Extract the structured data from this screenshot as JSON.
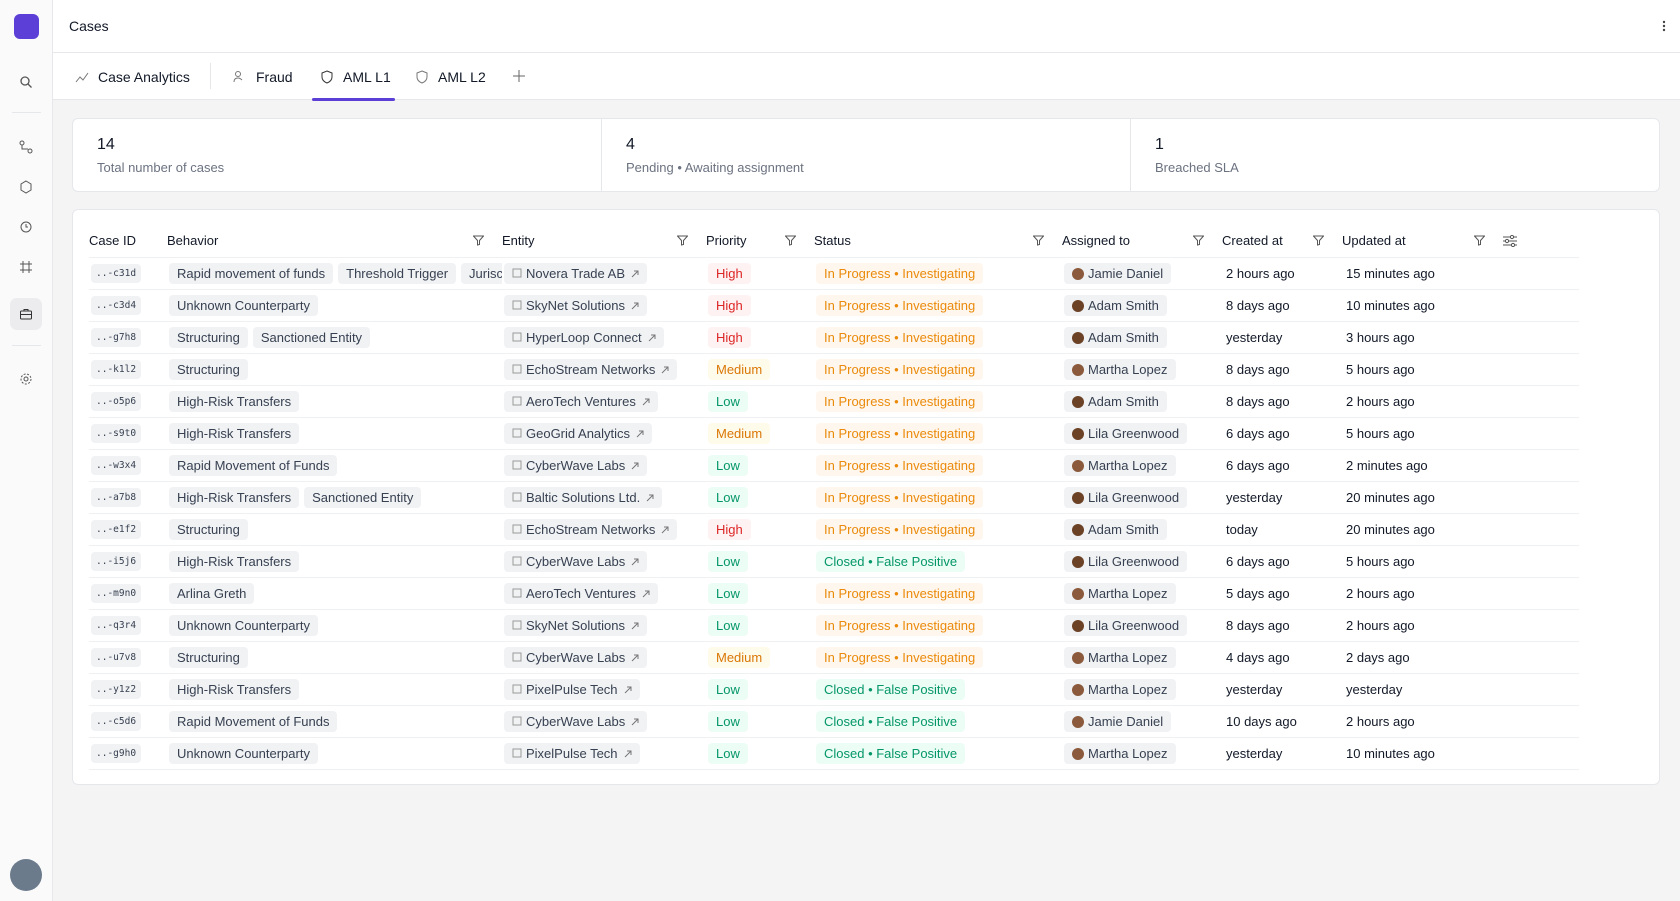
{
  "header": {
    "title": "Cases"
  },
  "tabs": [
    "Case Analytics",
    "Fraud",
    "AML L1",
    "AML L2"
  ],
  "stats": [
    {
      "value": "14",
      "label": "Total number of cases"
    },
    {
      "value": "4",
      "label": "Pending • Awaiting assignment"
    },
    {
      "value": "1",
      "label": "Breached SLA"
    }
  ],
  "table": {
    "columns": [
      "Case ID",
      "Behavior",
      "Entity",
      "Priority",
      "Status",
      "Assigned to",
      "Created at",
      "Updated at"
    ],
    "rows": [
      {
        "id": "..-c31d",
        "behaviors": [
          "Rapid movement of funds",
          "Threshold Trigger",
          "Jurisc"
        ],
        "entity": "Novera Trade AB",
        "priority": "High",
        "status": "In Progress • Investigating",
        "assigned": "Jamie Daniel",
        "created": "2 hours ago",
        "updated": "15 minutes ago"
      },
      {
        "id": "..-c3d4",
        "behaviors": [
          "Unknown Counterparty"
        ],
        "entity": "SkyNet Solutions",
        "priority": "High",
        "status": "In Progress • Investigating",
        "assigned": "Adam Smith",
        "created": "8 days ago",
        "updated": "10 minutes ago"
      },
      {
        "id": "..-g7h8",
        "behaviors": [
          "Structuring",
          "Sanctioned Entity"
        ],
        "entity": "HyperLoop Connect",
        "priority": "High",
        "status": "In Progress • Investigating",
        "assigned": "Adam Smith",
        "created": "yesterday",
        "updated": "3 hours ago"
      },
      {
        "id": "..-k1l2",
        "behaviors": [
          "Structuring"
        ],
        "entity": "EchoStream Networks",
        "priority": "Medium",
        "status": "In Progress • Investigating",
        "assigned": "Martha Lopez",
        "created": "8 days ago",
        "updated": "5 hours ago"
      },
      {
        "id": "..-o5p6",
        "behaviors": [
          "High-Risk Transfers"
        ],
        "entity": "AeroTech Ventures",
        "priority": "Low",
        "status": "In Progress • Investigating",
        "assigned": "Adam Smith",
        "created": "8 days ago",
        "updated": "2 hours ago"
      },
      {
        "id": "..-s9t0",
        "behaviors": [
          "High-Risk Transfers"
        ],
        "entity": "GeoGrid Analytics",
        "priority": "Medium",
        "status": "In Progress • Investigating",
        "assigned": "Lila Greenwood",
        "created": "6 days ago",
        "updated": "5 hours ago"
      },
      {
        "id": "..-w3x4",
        "behaviors": [
          "Rapid Movement of Funds"
        ],
        "entity": "CyberWave Labs",
        "priority": "Low",
        "status": "In Progress • Investigating",
        "assigned": "Martha Lopez",
        "created": "6 days ago",
        "updated": "2 minutes ago"
      },
      {
        "id": "..-a7b8",
        "behaviors": [
          "High-Risk Transfers",
          "Sanctioned Entity"
        ],
        "entity": "Baltic Solutions Ltd.",
        "priority": "Low",
        "status": "In Progress • Investigating",
        "assigned": "Lila Greenwood",
        "created": "yesterday",
        "updated": "20 minutes ago"
      },
      {
        "id": "..-e1f2",
        "behaviors": [
          "Structuring"
        ],
        "entity": "EchoStream Networks",
        "priority": "High",
        "status": "In Progress • Investigating",
        "assigned": "Adam Smith",
        "created": "today",
        "updated": "20 minutes ago"
      },
      {
        "id": "..-i5j6",
        "behaviors": [
          "High-Risk Transfers"
        ],
        "entity": "CyberWave Labs",
        "priority": "Low",
        "status": "Closed • False Positive",
        "assigned": "Lila Greenwood",
        "created": "6 days ago",
        "updated": "5 hours ago"
      },
      {
        "id": "..-m9n0",
        "behaviors": [
          "Arlina Greth"
        ],
        "entity": "AeroTech Ventures",
        "priority": "Low",
        "status": "In Progress • Investigating",
        "assigned": "Martha Lopez",
        "created": "5 days ago",
        "updated": "2 hours ago"
      },
      {
        "id": "..-q3r4",
        "behaviors": [
          "Unknown Counterparty"
        ],
        "entity": "SkyNet Solutions",
        "priority": "Low",
        "status": "In Progress • Investigating",
        "assigned": "Lila Greenwood",
        "created": "8 days ago",
        "updated": "2 hours ago"
      },
      {
        "id": "..-u7v8",
        "behaviors": [
          "Structuring"
        ],
        "entity": "CyberWave Labs",
        "priority": "Medium",
        "status": "In Progress • Investigating",
        "assigned": "Martha Lopez",
        "created": "4 days ago",
        "updated": "2 days ago"
      },
      {
        "id": "..-y1z2",
        "behaviors": [
          "High-Risk Transfers"
        ],
        "entity": "PixelPulse Tech",
        "priority": "Low",
        "status": "Closed • False Positive",
        "assigned": "Martha Lopez",
        "created": "yesterday",
        "updated": "yesterday"
      },
      {
        "id": "..-c5d6",
        "behaviors": [
          "Rapid Movement of Funds"
        ],
        "entity": "CyberWave Labs",
        "priority": "Low",
        "status": "Closed • False Positive",
        "assigned": "Jamie Daniel",
        "created": "10 days ago",
        "updated": "2 hours ago"
      },
      {
        "id": "..-g9h0",
        "behaviors": [
          "Unknown Counterparty"
        ],
        "entity": "PixelPulse Tech",
        "priority": "Low",
        "status": "Closed • False Positive",
        "assigned": "Martha Lopez",
        "created": "yesterday",
        "updated": "10 minutes ago"
      }
    ]
  }
}
